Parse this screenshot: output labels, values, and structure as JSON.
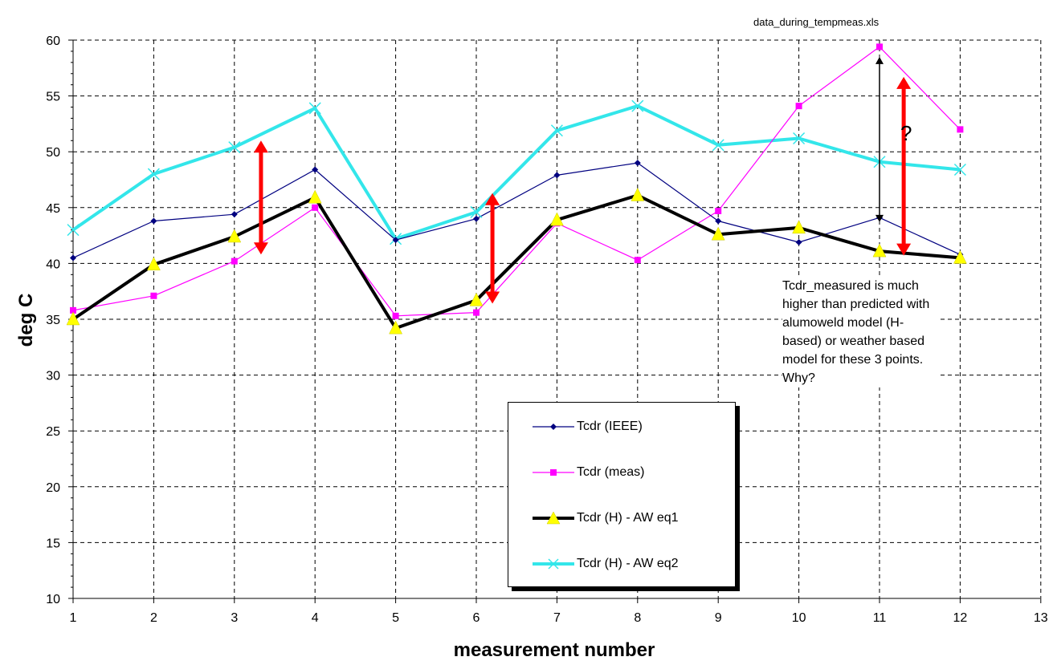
{
  "file_label": "data_during_tempmeas.xls",
  "note": "Tcdr_measured is much higher than predicted with alumoweld model (H-based) or weather based model for these 3 points.  Why?",
  "question_mark": "?",
  "chart_data": {
    "type": "line",
    "title": "",
    "xlabel": "measurement number",
    "ylabel": "deg C",
    "xlim": [
      1,
      13
    ],
    "ylim": [
      10,
      60
    ],
    "x_ticks": [
      1,
      2,
      3,
      4,
      5,
      6,
      7,
      8,
      9,
      10,
      11,
      12,
      13
    ],
    "y_ticks": [
      10,
      15,
      20,
      25,
      30,
      35,
      40,
      45,
      50,
      55,
      60
    ],
    "grid": true,
    "legend_position": "bottom-center",
    "x": [
      1,
      2,
      3,
      4,
      5,
      6,
      7,
      8,
      9,
      10,
      11,
      12
    ],
    "series": [
      {
        "name": "Tcdr (IEEE)",
        "color": "#000080",
        "marker": "diamond",
        "values": [
          40.5,
          43.8,
          44.4,
          48.4,
          42.1,
          44.0,
          47.9,
          49.0,
          43.8,
          41.9,
          44.1,
          40.8
        ]
      },
      {
        "name": "Tcdr (meas)",
        "color": "#ff00ff",
        "marker": "square",
        "values": [
          35.8,
          37.1,
          40.2,
          45.0,
          35.3,
          35.6,
          43.6,
          40.3,
          44.7,
          54.1,
          59.4,
          52.0
        ]
      },
      {
        "name": "Tcdr (H) - AW eq1",
        "color": "#000000",
        "marker": "triangle",
        "values": [
          35.0,
          39.9,
          42.4,
          45.9,
          34.2,
          36.7,
          43.9,
          46.1,
          42.6,
          43.2,
          41.1,
          40.5
        ]
      },
      {
        "name": "Tcdr (H) - AW eq2",
        "color": "#33e6ea",
        "marker": "x",
        "values": [
          43.0,
          48.0,
          50.4,
          53.9,
          42.2,
          44.6,
          51.9,
          54.1,
          50.6,
          51.2,
          49.1,
          48.4
        ]
      }
    ],
    "annotations": [
      {
        "type": "double-arrow",
        "color": "#ff0000",
        "x": 3.33,
        "y_from": 40.8,
        "y_to": 51.0
      },
      {
        "type": "double-arrow",
        "color": "#ff0000",
        "x": 6.2,
        "y_from": 36.4,
        "y_to": 46.3
      },
      {
        "type": "double-arrow",
        "color": "#ff0000",
        "x": 11.3,
        "y_from": 40.7,
        "y_to": 56.7
      },
      {
        "type": "double-arrow",
        "color": "#000000",
        "x": 11.0,
        "y_from": 43.7,
        "y_to": 58.5
      }
    ]
  }
}
